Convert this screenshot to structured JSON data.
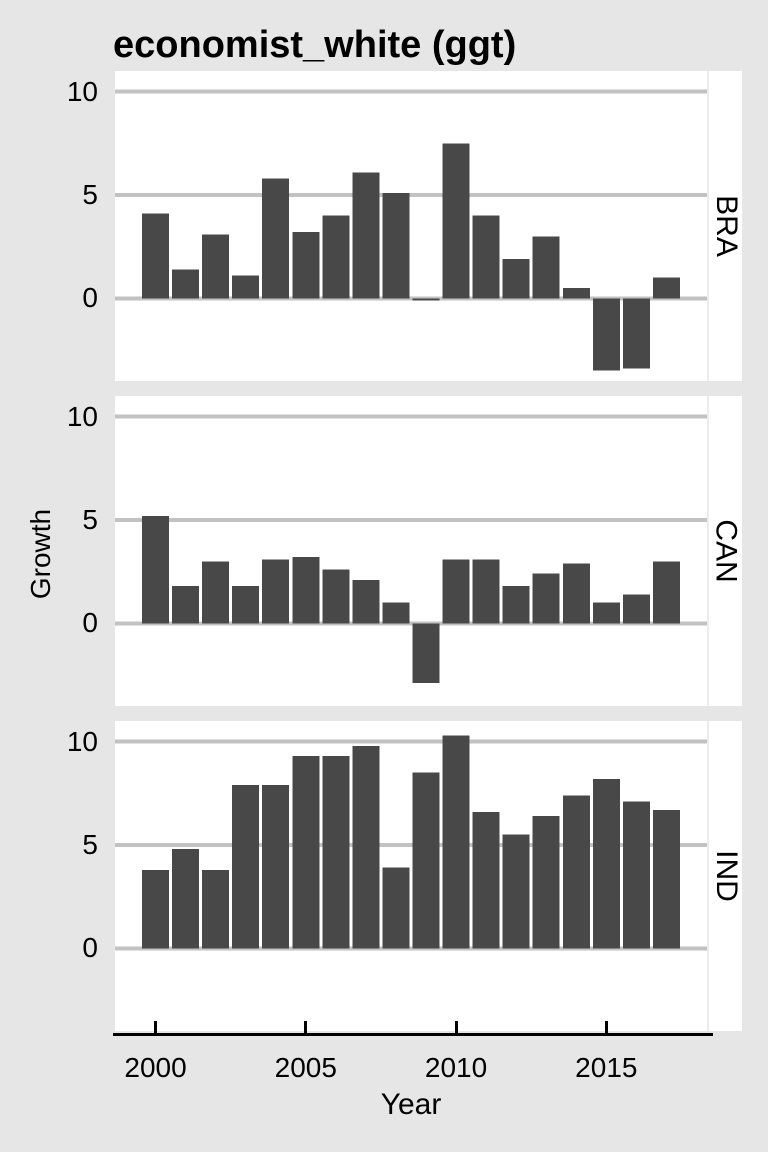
{
  "title": "economist_white (ggt)",
  "colors": {
    "background": "#E6E6E6",
    "panel_background": "#FFFFFF",
    "gridline": "#C2C2C2",
    "bar": "#484848",
    "axis_line": "#000000",
    "text": "#000000"
  },
  "chart_data": {
    "type": "bar",
    "title": "economist_white (ggt)",
    "xlabel": "Year",
    "ylabel": "Growth",
    "facet_layout": "3 stacked row facets, strip labels rotated on right side",
    "legend": "none",
    "grid": "horizontal major gridlines only, white panel background",
    "x": [
      2000,
      2001,
      2002,
      2003,
      2004,
      2005,
      2006,
      2007,
      2008,
      2009,
      2010,
      2011,
      2012,
      2013,
      2014,
      2015,
      2016,
      2017
    ],
    "series": [
      {
        "name": "BRA",
        "values": [
          4.1,
          1.4,
          3.1,
          1.1,
          5.8,
          3.2,
          4.0,
          6.1,
          5.1,
          -0.1,
          7.5,
          4.0,
          1.9,
          3.0,
          0.5,
          -3.5,
          -3.4,
          1.0
        ]
      },
      {
        "name": "CAN",
        "values": [
          5.2,
          1.8,
          3.0,
          1.8,
          3.1,
          3.2,
          2.6,
          2.1,
          1.0,
          -2.9,
          3.1,
          3.1,
          1.8,
          2.4,
          2.9,
          1.0,
          1.4,
          3.0
        ]
      },
      {
        "name": "IND",
        "values": [
          3.8,
          4.8,
          3.8,
          7.9,
          7.9,
          9.3,
          9.3,
          9.8,
          3.9,
          8.5,
          10.3,
          6.6,
          5.5,
          6.4,
          7.4,
          8.2,
          7.1,
          6.7
        ]
      }
    ],
    "xticks": [
      2000,
      2005,
      2010,
      2015
    ],
    "yticks": [
      10,
      5,
      0
    ],
    "xlim": [
      1998.65,
      2018.35
    ],
    "ylim": [
      -4.0,
      11.0
    ],
    "bar_rel_width": 0.9
  }
}
